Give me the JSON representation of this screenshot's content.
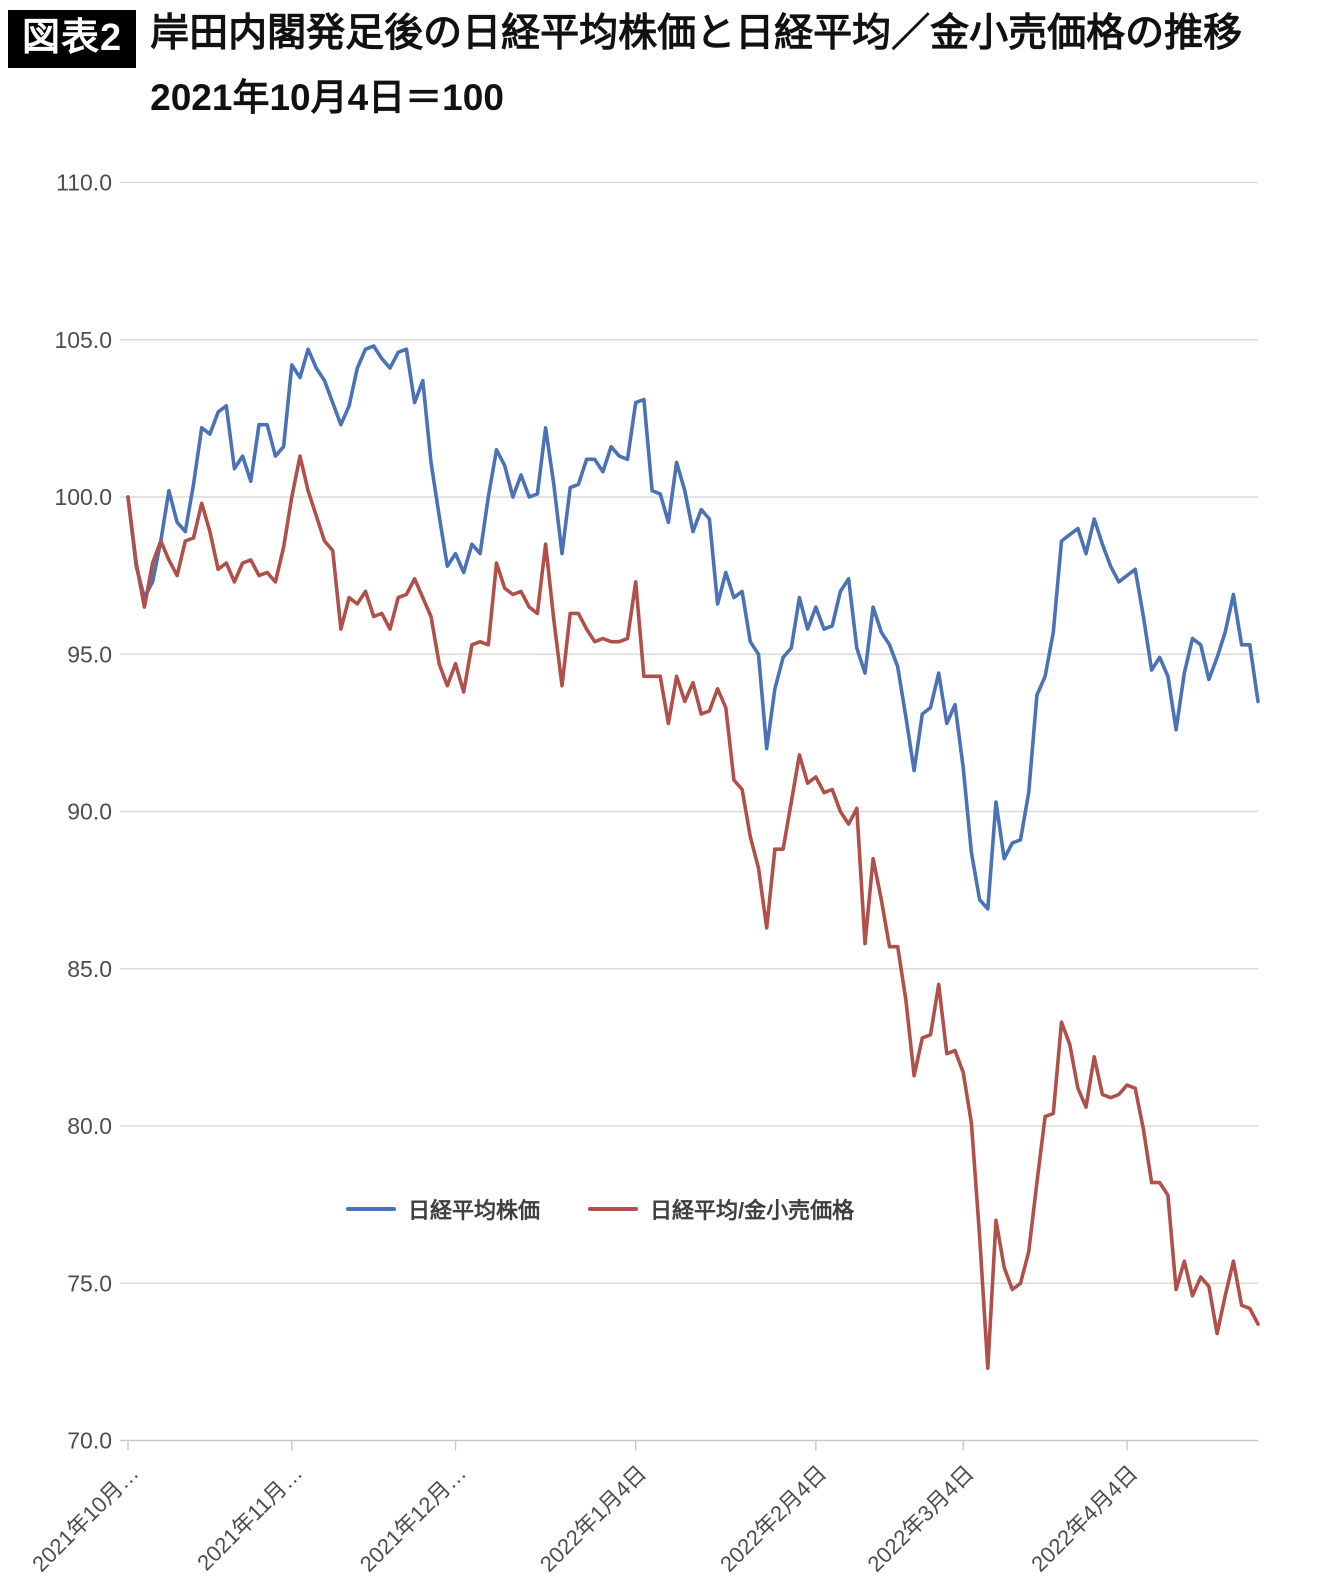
{
  "header": {
    "badge": "図表2",
    "title": "岸田内閣発足後の日経平均株価と日経平均／金小売価格の推移",
    "subtitle": "2021年10月4日＝100"
  },
  "chart_data": {
    "type": "line",
    "title": "岸田内閣発足後の日経平均株価と日経平均／金小売価格の推移",
    "subtitle_note": "2021年10月4日＝100",
    "xlabel": "",
    "ylabel": "",
    "ylim": [
      70,
      110
    ],
    "ytick_labels": [
      "110.0",
      "105.0",
      "100.0",
      "95.0",
      "90.0",
      "85.0",
      "80.0",
      "75.0",
      "70.0"
    ],
    "yticks": [
      110,
      105,
      100,
      95,
      90,
      85,
      80,
      75,
      70
    ],
    "grid": true,
    "x_axis": {
      "tick_labels": [
        "2021年10月…",
        "2021年11月…",
        "2021年12月…",
        "2022年1月4日",
        "2022年2月4日",
        "2022年3月4日",
        "2022年4月4日"
      ],
      "tick_positions": [
        0,
        20,
        40,
        62,
        84,
        102,
        122
      ],
      "points_total": 139,
      "period": "2021-10-04 to 2022-04-26, daily"
    },
    "legend": {
      "position": "inside-bottom-left",
      "items": [
        {
          "label": "日経平均株価",
          "color": "#4A72B4"
        },
        {
          "label": "日経平均/金小売価格",
          "color": "#B0504A"
        }
      ]
    },
    "colors": {
      "nikkei_blue": "#4A72B4",
      "gold_ratio_red": "#B0504A",
      "gridline": "#DADADA",
      "axis_line": "#C8C8C8",
      "axis_text": "#4D4D4D",
      "title_text": "#111111",
      "badge_bg": "#000000",
      "badge_text": "#FFFFFF"
    },
    "series": [
      {
        "name": "日経平均株価",
        "color": "#4A72B4",
        "values": [
          100.0,
          97.8,
          96.8,
          97.3,
          98.6,
          100.2,
          99.2,
          98.9,
          100.4,
          102.2,
          102.0,
          102.7,
          102.9,
          100.9,
          101.3,
          100.5,
          102.3,
          102.3,
          101.3,
          101.6,
          104.2,
          103.8,
          104.7,
          104.1,
          103.7,
          103.0,
          102.3,
          102.9,
          104.1,
          104.7,
          104.8,
          104.4,
          104.1,
          104.6,
          104.7,
          103.0,
          103.7,
          101.1,
          99.4,
          97.8,
          98.2,
          97.6,
          98.5,
          98.2,
          100.0,
          101.5,
          101.0,
          100.0,
          100.7,
          100.0,
          100.1,
          102.2,
          100.4,
          98.2,
          100.3,
          100.4,
          101.2,
          101.2,
          100.8,
          101.6,
          101.3,
          101.2,
          103.0,
          103.1,
          100.2,
          100.1,
          99.2,
          101.1,
          100.2,
          98.9,
          99.6,
          99.3,
          96.6,
          97.6,
          96.8,
          97.0,
          95.4,
          95.0,
          92.0,
          93.9,
          94.9,
          95.2,
          96.8,
          95.8,
          96.5,
          95.8,
          95.9,
          97.0,
          97.4,
          95.2,
          94.4,
          96.5,
          95.7,
          95.3,
          94.6,
          93.0,
          91.3,
          93.1,
          93.3,
          94.4,
          92.8,
          93.4,
          91.4,
          88.7,
          87.2,
          86.9,
          90.3,
          88.5,
          89.0,
          89.1,
          90.6,
          93.7,
          94.3,
          95.7,
          98.6,
          98.8,
          99.0,
          98.2,
          99.3,
          98.5,
          97.8,
          97.3,
          97.5,
          97.7,
          96.2,
          94.5,
          94.9,
          94.3,
          92.6,
          94.4,
          95.5,
          95.3,
          94.2,
          94.9,
          95.7,
          96.9,
          95.3,
          95.3,
          93.5
        ]
      },
      {
        "name": "日経平均/金小売価格",
        "color": "#B0504A",
        "values": [
          100.0,
          97.9,
          96.5,
          97.9,
          98.6,
          98.0,
          97.5,
          98.6,
          98.7,
          99.8,
          98.9,
          97.7,
          97.9,
          97.3,
          97.9,
          98.0,
          97.5,
          97.6,
          97.3,
          98.4,
          100.0,
          101.3,
          100.2,
          99.4,
          98.6,
          98.3,
          95.8,
          96.8,
          96.6,
          97.0,
          96.2,
          96.3,
          95.8,
          96.8,
          96.9,
          97.4,
          96.8,
          96.2,
          94.7,
          94.0,
          94.7,
          93.8,
          95.3,
          95.4,
          95.3,
          97.9,
          97.1,
          96.9,
          97.0,
          96.5,
          96.3,
          98.5,
          96.1,
          94.0,
          96.3,
          96.3,
          95.8,
          95.4,
          95.5,
          95.4,
          95.4,
          95.5,
          97.3,
          94.3,
          94.3,
          94.3,
          92.8,
          94.3,
          93.5,
          94.1,
          93.1,
          93.2,
          93.9,
          93.3,
          91.0,
          90.7,
          89.2,
          88.2,
          86.3,
          88.8,
          88.8,
          90.3,
          91.8,
          90.9,
          91.1,
          90.6,
          90.7,
          90.0,
          89.6,
          90.1,
          85.8,
          88.5,
          87.2,
          85.7,
          85.7,
          84.0,
          81.6,
          82.8,
          82.9,
          84.5,
          82.3,
          82.4,
          81.7,
          80.1,
          76.5,
          72.3,
          77.0,
          75.5,
          74.8,
          75.0,
          76.0,
          78.2,
          80.3,
          80.4,
          83.3,
          82.6,
          81.2,
          80.6,
          82.2,
          81.0,
          80.9,
          81.0,
          81.3,
          81.2,
          79.9,
          78.2,
          78.2,
          77.8,
          74.8,
          75.7,
          74.6,
          75.2,
          74.9,
          73.4,
          74.6,
          75.7,
          74.3,
          74.2,
          73.7
        ]
      }
    ]
  }
}
